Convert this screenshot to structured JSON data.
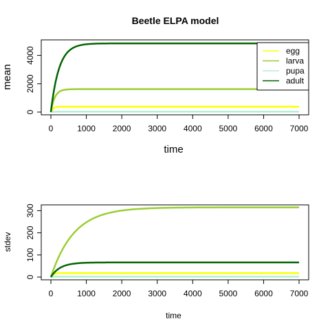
{
  "chart_data": [
    {
      "type": "line",
      "title": "Beetle ELPA model",
      "xlabel": "time",
      "ylabel": "mean",
      "xlim": [
        0,
        7000
      ],
      "ylim": [
        0,
        5000
      ],
      "xticks": [
        0,
        1000,
        2000,
        3000,
        4000,
        5000,
        6000,
        7000
      ],
      "yticks": [
        0,
        2000,
        4000
      ],
      "legend": {
        "position": "top-right",
        "entries": [
          "egg",
          "larva",
          "pupa",
          "adult"
        ]
      },
      "series": [
        {
          "name": "egg",
          "color": "#ffff00",
          "start": 0,
          "plateau": 380,
          "rate": 60
        },
        {
          "name": "larva",
          "color": "#9acd32",
          "start": 0,
          "plateau": 1620,
          "rate": 110
        },
        {
          "name": "pupa",
          "color": "#b0f0d0",
          "start": 0,
          "plateau": 30,
          "rate": 60
        },
        {
          "name": "adult",
          "color": "#006400",
          "start": 0,
          "plateau": 4850,
          "rate": 230
        }
      ]
    },
    {
      "type": "line",
      "title": "",
      "xlabel": "time",
      "ylabel": "stdev",
      "xlim": [
        0,
        7000
      ],
      "ylim": [
        0,
        320
      ],
      "xticks": [
        0,
        1000,
        2000,
        3000,
        4000,
        5000,
        6000,
        7000
      ],
      "yticks": [
        0,
        100,
        200,
        300
      ],
      "series": [
        {
          "name": "egg",
          "color": "#ffff00",
          "start": 0,
          "plateau": 18,
          "rate": 60
        },
        {
          "name": "larva",
          "color": "#9acd32",
          "start": 0,
          "plateau": 315,
          "rate": 650
        },
        {
          "name": "pupa",
          "color": "#b0f0d0",
          "start": 0,
          "plateau": 2,
          "rate": 60
        },
        {
          "name": "adult",
          "color": "#006400",
          "start": 0,
          "plateau": 66,
          "rate": 260
        }
      ]
    }
  ]
}
